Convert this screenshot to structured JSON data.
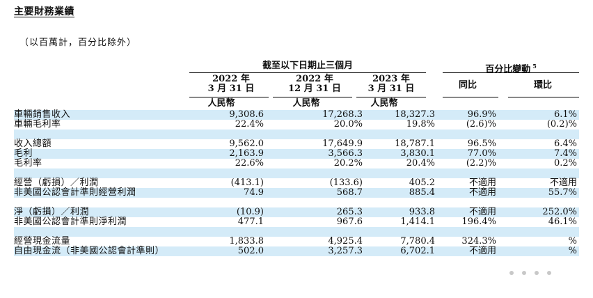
{
  "heading": "主要財務業績",
  "note": "（以百萬計，百分比除外）",
  "header": {
    "group_title": "截至以下日期止三個月",
    "change_title": "百分比變動",
    "change_sup": "5",
    "cols": [
      {
        "line1": "2022 年",
        "line2": "3 月 31 日",
        "currency": "人民幣"
      },
      {
        "line1": "2022 年",
        "line2": "12 月 31 日",
        "currency": "人民幣"
      },
      {
        "line1": "2023 年",
        "line2": "3 月 31 日",
        "currency": "人民幣"
      }
    ],
    "yoy": "同比",
    "qoq": "環比"
  },
  "rows": [
    {
      "label": "車輛銷售收入",
      "v1": "9,308.6",
      "v2": "17,268.3",
      "v3": "18,327.3",
      "yoy": "96.9%",
      "qoq": "6.1%"
    },
    {
      "label": "車輛毛利率",
      "v1": "22.4%",
      "v2": "20.0%",
      "v3": "19.8%",
      "yoy": "(2.6)%",
      "qoq": "(0.2)%"
    },
    {
      "label": "收入總額",
      "v1": "9,562.0",
      "v2": "17,649.9",
      "v3": "18,787.1",
      "yoy": "96.5%",
      "qoq": "6.4%"
    },
    {
      "label": "毛利",
      "v1": "2,163.9",
      "v2": "3,566.3",
      "v3": "3,830.1",
      "yoy": "77.0%",
      "qoq": "7.4%"
    },
    {
      "label": "毛利率",
      "v1": "22.6%",
      "v2": "20.2%",
      "v3": "20.4%",
      "yoy": "(2.2)%",
      "qoq": "0.2%"
    },
    {
      "label": "經營（虧損）／利潤",
      "v1": "(413.1)",
      "v2": "(133.6)",
      "v3": "405.2",
      "yoy": "不適用",
      "qoq": "不適用"
    },
    {
      "label": "非美國公認會計準則經營利潤",
      "v1": "74.9",
      "v2": "568.7",
      "v3": "885.4",
      "yoy": "不適用",
      "qoq": "55.7%"
    },
    {
      "label": "淨（虧損）／利潤",
      "v1": "(10.9)",
      "v2": "265.3",
      "v3": "933.8",
      "yoy": "不適用",
      "qoq": "252.0%"
    },
    {
      "label": "非美國公認會計準則淨利潤",
      "v1": "477.1",
      "v2": "967.6",
      "v3": "1,414.1",
      "yoy": "196.4%",
      "qoq": "46.1%"
    },
    {
      "label": "經營現金流量",
      "v1": "1,833.8",
      "v2": "4,925.4",
      "v3": "7,780.4",
      "yoy": "324.3%",
      "qoq": "%"
    },
    {
      "label": "自由現金流（非美國公認會計準則）",
      "v1": "502.0",
      "v2": "3,257.3",
      "v3": "6,702.1",
      "yoy": "不適用",
      "qoq": "%"
    }
  ],
  "colors": {
    "row_shade": "#d4ebf8"
  }
}
